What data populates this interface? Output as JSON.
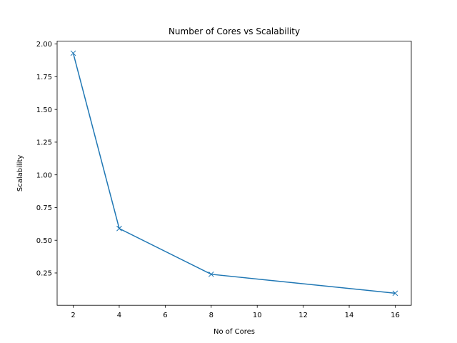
{
  "chart_data": {
    "type": "line",
    "title": "Number of Cores vs Scalability",
    "xlabel": "No of Cores",
    "ylabel": "Scalability",
    "x": [
      2,
      4,
      8,
      16
    ],
    "series": [
      {
        "values": [
          1.93,
          0.59,
          0.24,
          0.095
        ]
      }
    ],
    "marker": "x",
    "color": "#1f77b4",
    "xlim": [
      1.3,
      16.7
    ],
    "ylim": [
      0.003,
      2.022
    ],
    "xticks": [
      "2",
      "4",
      "6",
      "8",
      "10",
      "12",
      "14",
      "16"
    ],
    "yticks": [
      "0.25",
      "0.50",
      "0.75",
      "1.00",
      "1.25",
      "1.50",
      "1.75",
      "2.00"
    ],
    "grid": false
  }
}
